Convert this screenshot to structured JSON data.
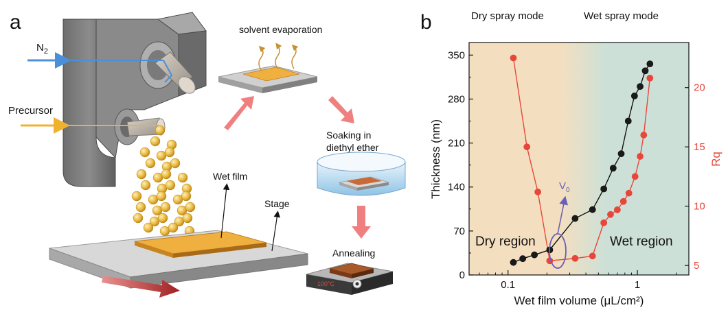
{
  "panel_a": {
    "letter": "a",
    "label_n2": "N",
    "label_n2_sub": "2",
    "label_precursor": "Precursor",
    "label_evaporation": "solvent evaporation",
    "label_soaking_1": "Soaking in",
    "label_soaking_2": "diethyl ether",
    "label_wetfilm": "Wet film",
    "label_stage": "Stage",
    "label_annealing": "Annealing",
    "hotplate_display": "100°C",
    "colors": {
      "n2_line": "#4a90d9",
      "precursor_line": "#f0b030",
      "film": "#e8a030",
      "arrow": "#f08080",
      "droplet": "#e8b840"
    }
  },
  "panel_b": {
    "letter": "b",
    "mode_dry": "Dry spray mode",
    "mode_wet": "Wet spray mode",
    "region_dry": "Dry region",
    "region_wet": "Wet region",
    "v0_label": "V",
    "v0_sub": "0",
    "colors": {
      "dry_bg": "#f3dfc0",
      "wet_bg": "#cde0d7",
      "thickness": "#111111",
      "rq": "#e8463a",
      "v0": "#6a60b8"
    }
  },
  "chart_data": {
    "type": "line",
    "xlabel": "Wet film volume (μL/cm²)",
    "ylabel": "Thickness (nm)",
    "y2label": "Rq",
    "xscale": "log",
    "xlim": [
      0.05,
      2.5
    ],
    "ylim": [
      0,
      370
    ],
    "y2lim": [
      4.2,
      23.8
    ],
    "xticks": [
      0.1,
      1
    ],
    "xtick_labels": [
      "0.1",
      "1"
    ],
    "yticks": [
      0,
      70,
      140,
      210,
      280,
      350
    ],
    "ytick_labels": [
      "0",
      "70",
      "140",
      "210",
      "280",
      "350"
    ],
    "y2ticks": [
      5,
      10,
      15,
      20
    ],
    "y2tick_labels": [
      "5",
      "10",
      "15",
      "20"
    ],
    "series": [
      {
        "name": "Thickness",
        "axis": "left",
        "x": [
          0.11,
          0.13,
          0.16,
          0.21,
          0.33,
          0.45,
          0.55,
          0.65,
          0.75,
          0.85,
          0.95,
          1.05,
          1.15,
          1.25
        ],
        "values": [
          20,
          26,
          32,
          40,
          90,
          104,
          137,
          170,
          193,
          245,
          285,
          300,
          325,
          336
        ]
      },
      {
        "name": "Rq",
        "axis": "right",
        "x": [
          0.11,
          0.14,
          0.17,
          0.21,
          0.33,
          0.45,
          0.55,
          0.62,
          0.7,
          0.78,
          0.86,
          0.96,
          1.05,
          1.12,
          1.25
        ],
        "values": [
          22.5,
          15.0,
          11.2,
          5.4,
          5.6,
          5.8,
          8.6,
          9.3,
          9.7,
          10.4,
          11.1,
          12.5,
          14.2,
          16.0,
          20.8
        ]
      }
    ]
  }
}
